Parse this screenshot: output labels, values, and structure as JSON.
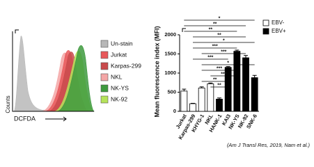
{
  "chart_data": [
    {
      "type": "histogram-overlay",
      "xlabel": "DCFDA",
      "ylabel": "Counts",
      "series": [
        {
          "name": "Un-stain",
          "color": "#b8b8b8"
        },
        {
          "name": "Jurkat",
          "color": "#e8585a"
        },
        {
          "name": "Karpas-299",
          "color": "#c94a4c"
        },
        {
          "name": "NKL",
          "color": "#f4a6a6"
        },
        {
          "name": "NK-YS",
          "color": "#3e9a3e"
        },
        {
          "name": "NK-92",
          "color": "#b6e35a"
        }
      ]
    },
    {
      "type": "bar",
      "ylabel": "Mean fluorescence index (MFI)",
      "categories": [
        "Jurkat",
        "Karpas-299",
        "KHYG-1",
        "NKL",
        "HANK-1",
        "KAI3",
        "NK-YS",
        "NK-92",
        "SNK-6"
      ],
      "series": [
        {
          "name": "EBV-",
          "color": "#ffffff",
          "values": [
            530,
            200,
            610,
            720,
            null,
            null,
            null,
            null,
            null
          ],
          "errors": [
            50,
            10,
            30,
            20,
            null,
            null,
            null,
            null,
            null
          ]
        },
        {
          "name": "EBV+",
          "color": "#000000",
          "values": [
            null,
            null,
            null,
            null,
            320,
            1150,
            1570,
            1400,
            880
          ],
          "errors": [
            null,
            null,
            null,
            null,
            30,
            20,
            30,
            60,
            60
          ]
        }
      ],
      "ylim": [
        0,
        2000
      ],
      "yticks": [
        0,
        500,
        1000,
        1500,
        2000
      ],
      "significance": [
        {
          "from": "Jurkat",
          "to": "SNK-6",
          "label": "*"
        },
        {
          "from": "Jurkat",
          "to": "NK-92",
          "label": "**"
        },
        {
          "from": "Jurkat",
          "to": "NK-YS",
          "label": "**"
        },
        {
          "from": "Karpas-299",
          "to": "NK-92",
          "label": "**"
        },
        {
          "from": "Karpas-299",
          "to": "SNK-6",
          "label": "*"
        },
        {
          "from": "Karpas-299",
          "to": "NK-YS",
          "label": "***"
        },
        {
          "from": "KHYG-1",
          "to": "NK-92",
          "label": "***"
        },
        {
          "from": "Karpas-299",
          "to": "KAI3",
          "label": "***"
        },
        {
          "from": "KHYG-1",
          "to": "SNK-6",
          "label": "*"
        },
        {
          "from": "KHYG-1",
          "to": "NK-YS",
          "label": "***"
        },
        {
          "from": "NKL",
          "to": "NK-YS",
          "label": "***"
        },
        {
          "from": "KHYG-1",
          "to": "KAI3",
          "label": "**"
        },
        {
          "from": "NKL",
          "to": "KAI3",
          "label": "**"
        }
      ],
      "citation": "(Am J Transl Res, 2019, Nam et al.)"
    }
  ]
}
